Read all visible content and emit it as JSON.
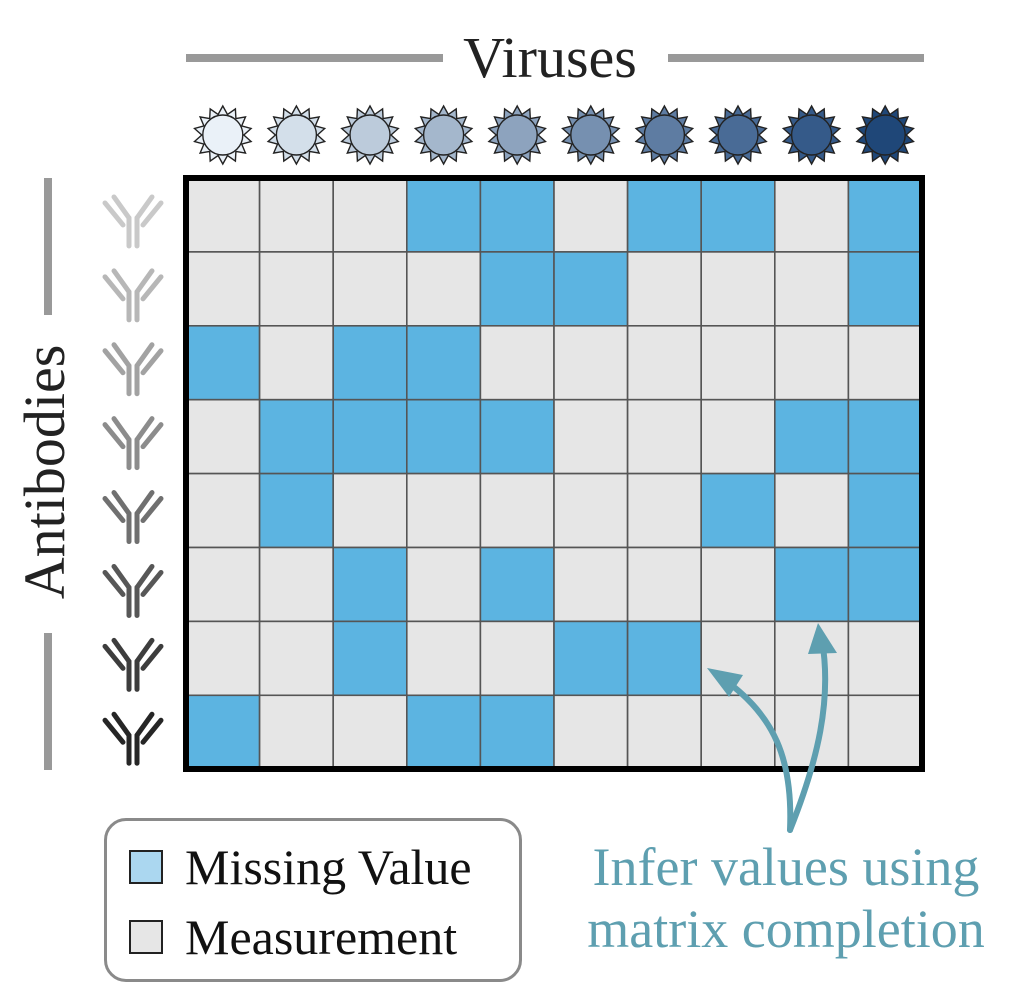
{
  "titles": {
    "viruses": "Viruses",
    "antibodies": "Antibodies"
  },
  "legend": {
    "missing": {
      "label": "Missing Value",
      "color": "#abd7f0"
    },
    "measurement": {
      "label": "Measurement",
      "color": "#e6e6e6"
    }
  },
  "annotation": {
    "line1": "Infer values using",
    "line2": "matrix completion",
    "color": "#5e9fb0"
  },
  "colors": {
    "missing_cell": "#5cb4e1",
    "measured_cell": "#e6e6e6",
    "grid_line": "#555555",
    "border": "#000000",
    "virus_shades": [
      "#eaf1f8",
      "#d3dfea",
      "#bccbdb",
      "#a4b7cc",
      "#8da3be",
      "#7690b0",
      "#5e7ca2",
      "#496b96",
      "#355a89",
      "#1f4778"
    ],
    "antibody_shades": [
      "#c9c9c9",
      "#b7b7b7",
      "#a2a2a2",
      "#8c8c8c",
      "#707070",
      "#575757",
      "#3d3d3d",
      "#262626"
    ]
  },
  "matrix": {
    "rows": 8,
    "cols": 10,
    "missing": [
      [
        0,
        0,
        0,
        1,
        1,
        0,
        1,
        1,
        0,
        1
      ],
      [
        0,
        0,
        0,
        0,
        1,
        1,
        0,
        0,
        0,
        1
      ],
      [
        1,
        0,
        1,
        1,
        0,
        0,
        0,
        0,
        0,
        0
      ],
      [
        0,
        1,
        1,
        1,
        1,
        0,
        0,
        0,
        1,
        1
      ],
      [
        0,
        1,
        0,
        0,
        0,
        0,
        0,
        1,
        0,
        1
      ],
      [
        0,
        0,
        1,
        0,
        1,
        0,
        0,
        0,
        1,
        1
      ],
      [
        0,
        0,
        1,
        0,
        0,
        1,
        1,
        0,
        0,
        0
      ],
      [
        1,
        0,
        0,
        1,
        1,
        0,
        0,
        0,
        0,
        0
      ]
    ]
  }
}
